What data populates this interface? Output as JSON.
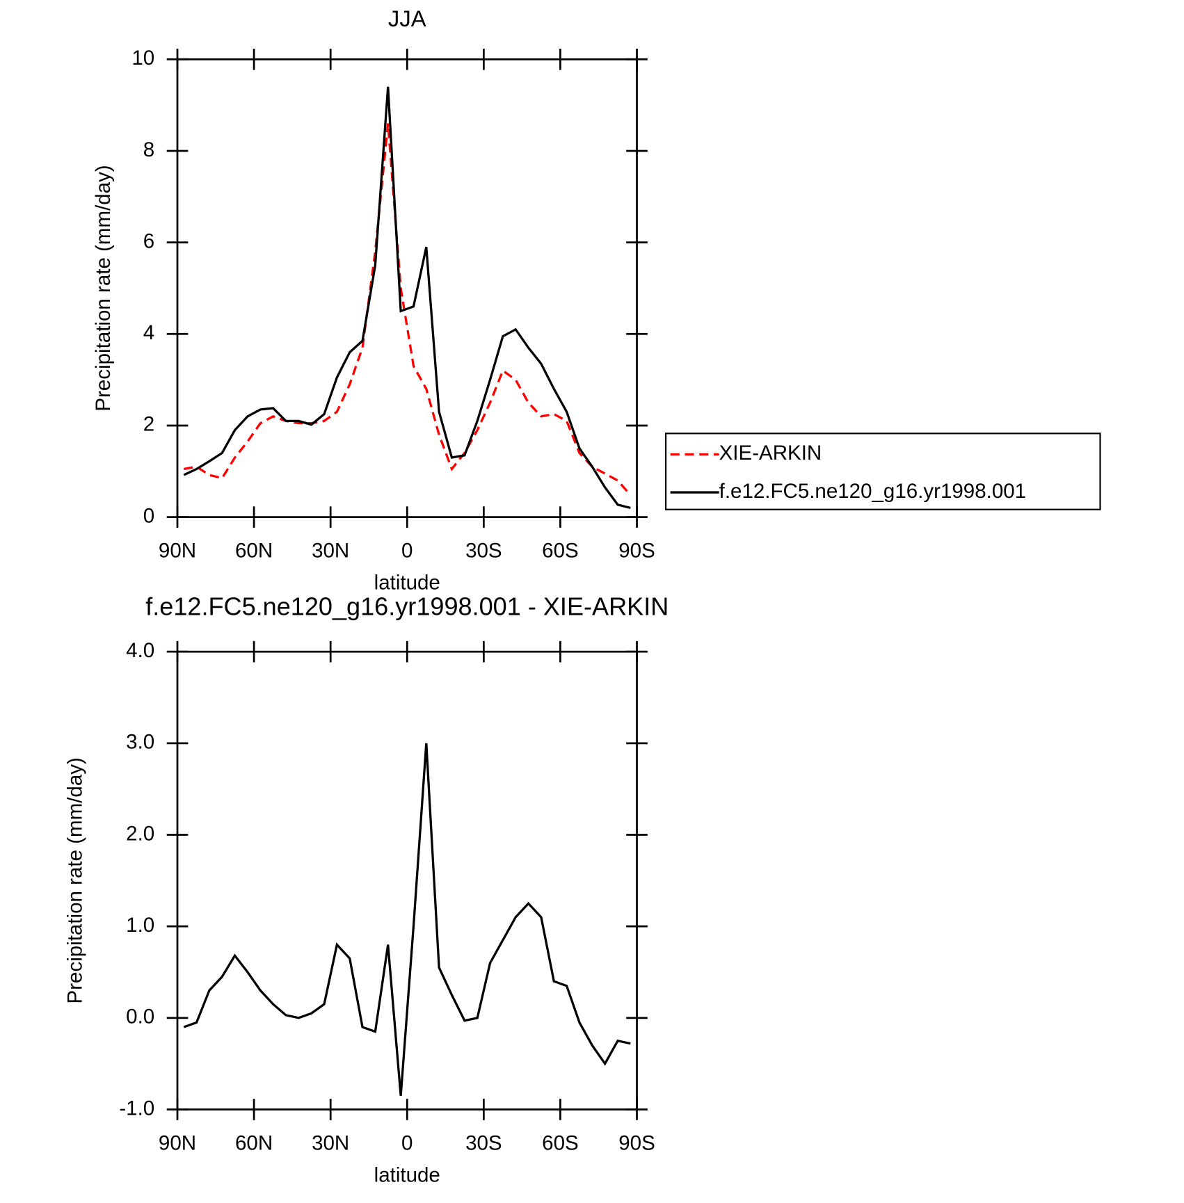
{
  "chart_data": [
    {
      "type": "line",
      "title": "JJA",
      "x_label": "latitude",
      "y_label": "Precipitation rate (mm/day)",
      "x": [
        87.5,
        82.5,
        77.5,
        72.5,
        67.5,
        62.5,
        57.5,
        52.5,
        47.5,
        42.5,
        37.5,
        32.5,
        27.5,
        22.5,
        17.5,
        12.5,
        7.5,
        2.5,
        -2.5,
        -7.5,
        -12.5,
        -17.5,
        -22.5,
        -27.5,
        -32.5,
        -37.5,
        -42.5,
        -47.5,
        -52.5,
        -57.5,
        -62.5,
        -67.5,
        -72.5,
        -77.5,
        -82.5,
        -87.5
      ],
      "series": [
        {
          "name": "XIE-ARKIN",
          "color": "#ff0000",
          "style": "dashed",
          "values": [
            1.05,
            1.1,
            0.92,
            0.85,
            1.3,
            1.65,
            2.05,
            2.2,
            2.1,
            2.05,
            2.05,
            2.1,
            2.3,
            2.9,
            3.7,
            5.8,
            8.6,
            5.0,
            3.3,
            2.8,
            1.8,
            1.05,
            1.4,
            1.9,
            2.5,
            3.2,
            3.0,
            2.5,
            2.2,
            2.25,
            2.1,
            1.4,
            1.1,
            0.95,
            0.8,
            0.48
          ]
        },
        {
          "name": "f.e12.FC5.ne120_g16.yr1998.001",
          "color": "#000000",
          "style": "solid",
          "values": [
            0.92,
            1.05,
            1.22,
            1.4,
            1.9,
            2.2,
            2.35,
            2.38,
            2.1,
            2.1,
            2.02,
            2.25,
            3.05,
            3.6,
            3.85,
            5.5,
            9.4,
            4.5,
            4.6,
            5.9,
            2.3,
            1.3,
            1.35,
            2.1,
            3.0,
            3.95,
            4.1,
            3.7,
            3.35,
            2.8,
            2.3,
            1.5,
            1.1,
            0.65,
            0.27,
            0.2
          ]
        }
      ],
      "xlim": [
        90,
        -90
      ],
      "xticks": [
        {
          "value": 90,
          "label": "90N"
        },
        {
          "value": 60,
          "label": "60N"
        },
        {
          "value": 30,
          "label": "30N"
        },
        0,
        {
          "value": -30,
          "label": "30S"
        },
        {
          "value": -60,
          "label": "60S"
        },
        {
          "value": -90,
          "label": "90S"
        }
      ],
      "ylim": [
        0,
        10
      ],
      "yticks": [
        0,
        2,
        4,
        6,
        8,
        10
      ],
      "legend": "right"
    },
    {
      "type": "line",
      "title": "f.e12.FC5.ne120_g16.yr1998.001 - XIE-ARKIN",
      "x_label": "latitude",
      "y_label": "Precipitation rate (mm/day)",
      "x": [
        87.5,
        82.5,
        77.5,
        72.5,
        67.5,
        62.5,
        57.5,
        52.5,
        47.5,
        42.5,
        37.5,
        32.5,
        27.5,
        22.5,
        17.5,
        12.5,
        7.5,
        2.5,
        -2.5,
        -7.5,
        -12.5,
        -17.5,
        -22.5,
        -27.5,
        -32.5,
        -37.5,
        -42.5,
        -47.5,
        -52.5,
        -57.5,
        -62.5,
        -67.5,
        -72.5,
        -77.5,
        -82.5,
        -87.5
      ],
      "series": [
        {
          "color": "#000000",
          "style": "solid",
          "values": [
            -0.1,
            -0.05,
            0.3,
            0.45,
            0.68,
            0.5,
            0.3,
            0.15,
            0.03,
            0.0,
            0.05,
            0.15,
            0.8,
            0.65,
            -0.1,
            -0.15,
            0.8,
            -0.85,
            1.0,
            3.0,
            0.55,
            0.25,
            -0.03,
            0.0,
            0.6,
            0.85,
            1.1,
            1.25,
            1.1,
            0.4,
            0.35,
            -0.05,
            -0.3,
            -0.5,
            -0.25,
            -0.28
          ]
        }
      ],
      "xlim": [
        90,
        -90
      ],
      "xticks": [
        {
          "value": 90,
          "label": "90N"
        },
        {
          "value": 60,
          "label": "60N"
        },
        {
          "value": 30,
          "label": "30N"
        },
        0,
        {
          "value": -30,
          "label": "30S"
        },
        {
          "value": -60,
          "label": "60S"
        },
        {
          "value": -90,
          "label": "90S"
        }
      ],
      "ylim": [
        -1,
        4
      ],
      "yticks": [
        {
          "value": -1,
          "label": "-1.0"
        },
        {
          "value": 0,
          "label": "0.0"
        },
        {
          "value": 1,
          "label": "1.0"
        },
        {
          "value": 2,
          "label": "2.0"
        },
        {
          "value": 3,
          "label": "3.0"
        },
        {
          "value": 4,
          "label": "4.0"
        }
      ]
    }
  ]
}
